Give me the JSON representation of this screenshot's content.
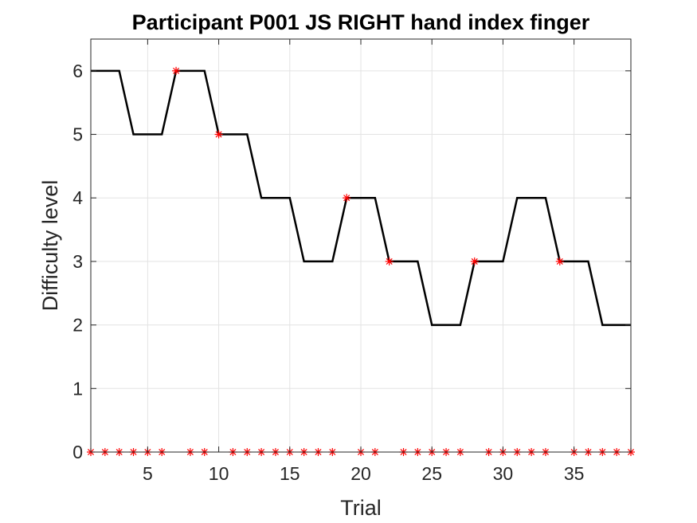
{
  "chart_data": {
    "type": "line",
    "title": "Participant P001 JS RIGHT hand index finger",
    "xlabel": "Trial",
    "ylabel": "Difficulty level",
    "xlim": [
      1,
      39
    ],
    "ylim": [
      0,
      6.5
    ],
    "xticks": [
      5,
      10,
      15,
      20,
      25,
      30,
      35
    ],
    "yticks": [
      0,
      1,
      2,
      3,
      4,
      5,
      6
    ],
    "grid": true,
    "series": [
      {
        "style": "line",
        "color": "#000000",
        "x": [
          1,
          2,
          3,
          4,
          5,
          6,
          7,
          8,
          9,
          10,
          11,
          12,
          13,
          14,
          15,
          16,
          17,
          18,
          19,
          20,
          21,
          22,
          23,
          24,
          25,
          26,
          27,
          28,
          29,
          30,
          31,
          32,
          33,
          34,
          35,
          36,
          37,
          38,
          39
        ],
        "values": [
          6,
          6,
          6,
          5,
          5,
          5,
          6,
          6,
          6,
          5,
          5,
          5,
          4,
          4,
          4,
          3,
          3,
          3,
          4,
          4,
          4,
          3,
          3,
          3,
          2,
          2,
          2,
          3,
          3,
          3,
          4,
          4,
          4,
          3,
          3,
          3,
          2,
          2,
          2
        ]
      },
      {
        "style": "markers",
        "marker": "asterisk",
        "color": "#ff0000",
        "points": [
          [
            7,
            6
          ],
          [
            10,
            5
          ],
          [
            19,
            4
          ],
          [
            22,
            3
          ],
          [
            28,
            3
          ],
          [
            34,
            3
          ]
        ]
      },
      {
        "style": "markers",
        "marker": "asterisk",
        "color": "#ff0000",
        "points": [
          [
            1,
            0
          ],
          [
            2,
            0
          ],
          [
            3,
            0
          ],
          [
            4,
            0
          ],
          [
            5,
            0
          ],
          [
            6,
            0
          ],
          [
            8,
            0
          ],
          [
            9,
            0
          ],
          [
            11,
            0
          ],
          [
            12,
            0
          ],
          [
            13,
            0
          ],
          [
            14,
            0
          ],
          [
            15,
            0
          ],
          [
            16,
            0
          ],
          [
            17,
            0
          ],
          [
            18,
            0
          ],
          [
            20,
            0
          ],
          [
            21,
            0
          ],
          [
            23,
            0
          ],
          [
            24,
            0
          ],
          [
            25,
            0
          ],
          [
            26,
            0
          ],
          [
            27,
            0
          ],
          [
            29,
            0
          ],
          [
            30,
            0
          ],
          [
            31,
            0
          ],
          [
            32,
            0
          ],
          [
            33,
            0
          ],
          [
            35,
            0
          ],
          [
            36,
            0
          ],
          [
            37,
            0
          ],
          [
            38,
            0
          ],
          [
            39,
            0
          ]
        ]
      }
    ]
  }
}
